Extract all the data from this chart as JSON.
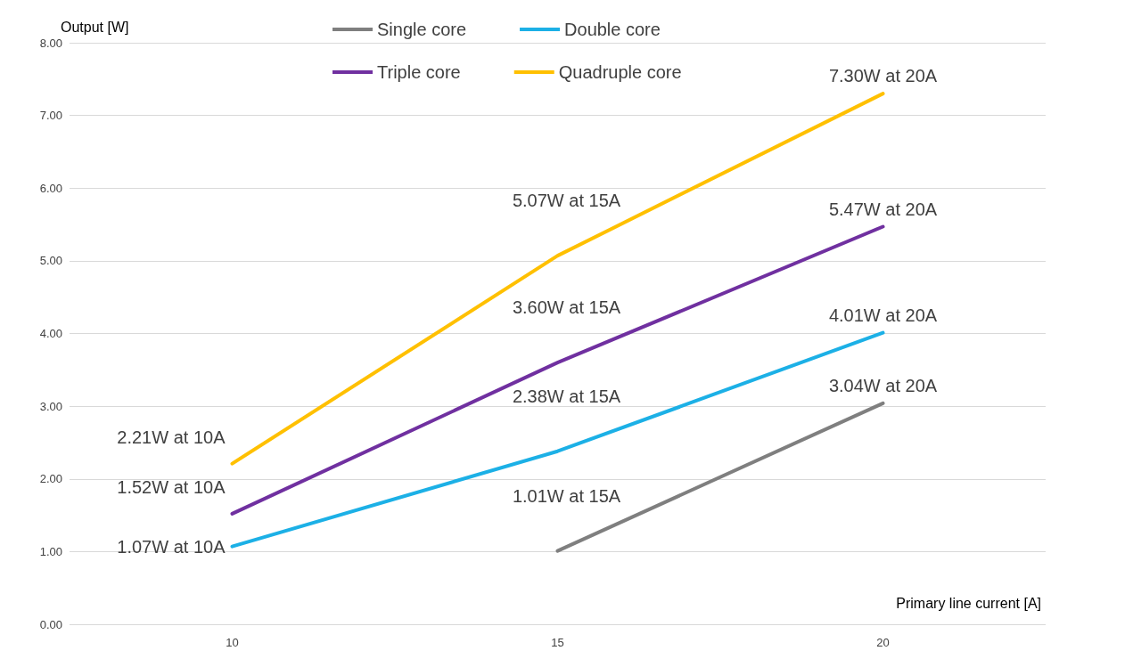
{
  "chart_data": {
    "type": "line",
    "xlabel": "Primary line current [A]",
    "ylabel": "Output [W]",
    "categories": [
      "10",
      "15",
      "20"
    ],
    "series": [
      {
        "name": "Single core",
        "color": "#7f7f7f",
        "values": [
          null,
          1.01,
          3.04
        ]
      },
      {
        "name": "Double core",
        "color": "#1cb0e6",
        "values": [
          1.07,
          2.38,
          4.01
        ]
      },
      {
        "name": "Triple core",
        "color": "#7030a0",
        "values": [
          1.52,
          3.6,
          5.47
        ]
      },
      {
        "name": "Quadruple core",
        "color": "#ffc000",
        "values": [
          2.21,
          5.07,
          7.3
        ]
      }
    ],
    "ylim": [
      0,
      8
    ],
    "yticks": [
      {
        "value": 0,
        "label": "0.00"
      },
      {
        "value": 1,
        "label": "1.00"
      },
      {
        "value": 2,
        "label": "2.00"
      },
      {
        "value": 3,
        "label": "3.00"
      },
      {
        "value": 4,
        "label": "4.00"
      },
      {
        "value": 5,
        "label": "5.00"
      },
      {
        "value": 6,
        "label": "6.00"
      },
      {
        "value": 7,
        "label": "7.00"
      },
      {
        "value": 8,
        "label": "8.00"
      }
    ],
    "grid": "y",
    "legend": "top",
    "marker": "none",
    "line_style": "solid",
    "annotations": [
      {
        "text": "1.07W at 10A",
        "x": "10",
        "y": 1.07
      },
      {
        "text": "1.52W at 10A",
        "x": "10",
        "y": 1.52
      },
      {
        "text": "2.21W at 10A",
        "x": "10",
        "y": 2.21
      },
      {
        "text": "1.01W at 15A",
        "x": "15",
        "y": 1.01
      },
      {
        "text": "2.38W at 15A",
        "x": "15",
        "y": 2.38
      },
      {
        "text": "3.60W at 15A",
        "x": "15",
        "y": 3.6
      },
      {
        "text": "5.07W at 15A",
        "x": "15",
        "y": 5.07
      },
      {
        "text": "3.04W at 20A",
        "x": "20",
        "y": 3.04
      },
      {
        "text": "4.01W at 20A",
        "x": "20",
        "y": 4.01
      },
      {
        "text": "5.47W at 20A",
        "x": "20",
        "y": 5.47
      },
      {
        "text": "7.30W at 20A",
        "x": "20",
        "y": 7.3
      }
    ]
  }
}
